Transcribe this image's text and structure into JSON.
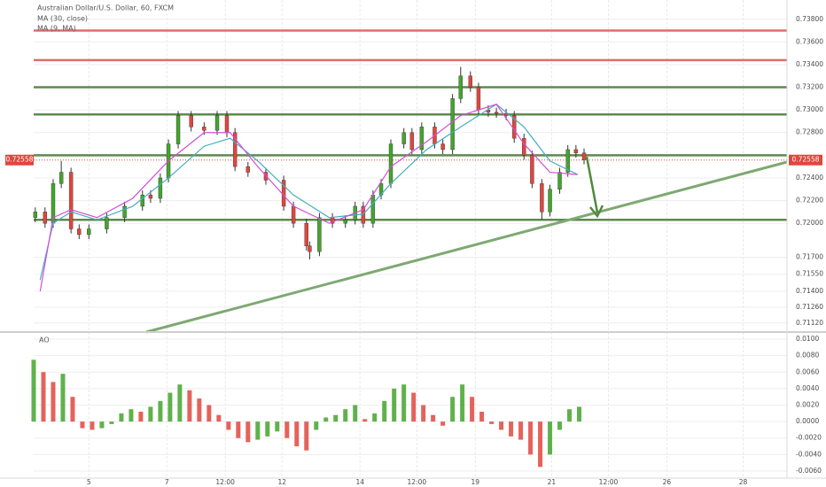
{
  "chart_data": [
    {
      "type": "candlestick",
      "title": "Australian Dollar/U.S. Dollar, 60, FXCM",
      "xlim": [
        0,
        464
      ],
      "xticks": [
        {
          "value": 34,
          "label": "5"
        },
        {
          "value": 82,
          "label": "7"
        },
        {
          "value": 118,
          "label": "12:00"
        },
        {
          "value": 153,
          "label": "12"
        },
        {
          "value": 201,
          "label": "14"
        },
        {
          "value": 236,
          "label": "12:00"
        },
        {
          "value": 272,
          "label": "19"
        },
        {
          "value": 319,
          "label": "21"
        },
        {
          "value": 354,
          "label": "12:00"
        },
        {
          "value": 390,
          "label": "26"
        },
        {
          "value": 437,
          "label": "28"
        }
      ],
      "ylim": [
        0.7104,
        0.7397
      ],
      "yticks": [
        {
          "value": 0.738,
          "label": "0.73800"
        },
        {
          "value": 0.736,
          "label": "0.73600"
        },
        {
          "value": 0.734,
          "label": "0.73400"
        },
        {
          "value": 0.732,
          "label": "0.73200"
        },
        {
          "value": 0.73,
          "label": "0.73000"
        },
        {
          "value": 0.728,
          "label": "0.72800"
        },
        {
          "value": 0.724,
          "label": "0.72400"
        },
        {
          "value": 0.722,
          "label": "0.72200"
        },
        {
          "value": 0.72,
          "label": "0.72000"
        },
        {
          "value": 0.717,
          "label": "0.71700"
        },
        {
          "value": 0.7155,
          "label": "0.71550"
        },
        {
          "value": 0.714,
          "label": "0.71400"
        },
        {
          "value": 0.7126,
          "label": "0.71260"
        },
        {
          "value": 0.7112,
          "label": "0.71120"
        }
      ],
      "grid": true,
      "up_color": "#43a52c",
      "down_color": "#e0463e",
      "x": [
        1,
        7,
        12,
        17,
        23,
        28,
        34,
        45,
        56,
        67,
        72,
        78,
        83,
        89,
        97,
        105,
        113,
        119,
        124,
        132,
        143,
        154,
        160,
        168,
        170,
        176,
        184,
        192,
        198,
        203,
        209,
        214,
        220,
        228,
        233,
        239,
        247,
        252,
        258,
        263,
        269,
        274,
        280,
        285,
        291,
        296,
        302,
        307,
        313,
        318,
        324,
        329,
        334,
        339
      ],
      "open": [
        0.7205,
        0.721,
        0.72,
        0.7235,
        0.7245,
        0.7195,
        0.719,
        0.7195,
        0.7205,
        0.7215,
        0.7225,
        0.7222,
        0.724,
        0.727,
        0.7295,
        0.7285,
        0.7282,
        0.7295,
        0.728,
        0.725,
        0.7245,
        0.7238,
        0.7215,
        0.72,
        0.718,
        0.7175,
        0.7205,
        0.72,
        0.7203,
        0.7215,
        0.72,
        0.7225,
        0.7235,
        0.727,
        0.728,
        0.7265,
        0.7285,
        0.727,
        0.7265,
        0.731,
        0.733,
        0.732,
        0.73,
        0.7298,
        0.7297,
        0.7295,
        0.7275,
        0.726,
        0.7235,
        0.721,
        0.723,
        0.7245,
        0.7265,
        0.7262
      ],
      "high": [
        0.7214,
        0.7214,
        0.7239,
        0.7255,
        0.7249,
        0.7199,
        0.7199,
        0.7209,
        0.7219,
        0.7229,
        0.7229,
        0.7244,
        0.7274,
        0.7299,
        0.7299,
        0.7289,
        0.7299,
        0.7299,
        0.7284,
        0.7254,
        0.7249,
        0.7242,
        0.7219,
        0.7204,
        0.7184,
        0.7209,
        0.7209,
        0.7207,
        0.7219,
        0.7219,
        0.7229,
        0.7239,
        0.7274,
        0.7284,
        0.7284,
        0.7289,
        0.7289,
        0.7274,
        0.7314,
        0.7338,
        0.7334,
        0.7324,
        0.7304,
        0.7302,
        0.7301,
        0.7299,
        0.7279,
        0.7264,
        0.7239,
        0.7234,
        0.7249,
        0.7269,
        0.7269,
        0.7266
      ],
      "low": [
        0.7201,
        0.7196,
        0.7196,
        0.7231,
        0.7191,
        0.7186,
        0.7186,
        0.7191,
        0.7201,
        0.7211,
        0.7218,
        0.7218,
        0.7236,
        0.7266,
        0.7281,
        0.7278,
        0.7278,
        0.7276,
        0.7246,
        0.7241,
        0.7234,
        0.7211,
        0.7196,
        0.7176,
        0.7168,
        0.7171,
        0.7196,
        0.7196,
        0.7199,
        0.7196,
        0.7196,
        0.7221,
        0.7231,
        0.7266,
        0.7261,
        0.7261,
        0.7266,
        0.7261,
        0.7261,
        0.7306,
        0.7316,
        0.7296,
        0.7294,
        0.7293,
        0.7291,
        0.7271,
        0.7256,
        0.7231,
        0.7203,
        0.7206,
        0.7226,
        0.7241,
        0.7258,
        0.7252
      ],
      "close": [
        0.721,
        0.72,
        0.7235,
        0.7245,
        0.7195,
        0.719,
        0.7195,
        0.7205,
        0.7215,
        0.7225,
        0.7222,
        0.724,
        0.727,
        0.7295,
        0.7285,
        0.7282,
        0.7295,
        0.728,
        0.725,
        0.7245,
        0.7238,
        0.7215,
        0.72,
        0.718,
        0.7175,
        0.7205,
        0.72,
        0.7203,
        0.7215,
        0.72,
        0.7225,
        0.7235,
        0.727,
        0.728,
        0.7265,
        0.7285,
        0.727,
        0.7265,
        0.731,
        0.733,
        0.732,
        0.73,
        0.7298,
        0.7297,
        0.7295,
        0.7275,
        0.726,
        0.7235,
        0.721,
        0.723,
        0.7245,
        0.7265,
        0.7262,
        0.72558
      ],
      "last_price": {
        "value": 0.72558,
        "label": "0.72558"
      },
      "series": [
        {
          "name": "MA (30, close)",
          "color": "#45aebf",
          "x": [
            4,
            12,
            23,
            39,
            61,
            83,
            105,
            121,
            138,
            160,
            182,
            203,
            220,
            242,
            263,
            285,
            302,
            318,
            335
          ],
          "values": [
            0.715,
            0.72,
            0.721,
            0.7203,
            0.7215,
            0.724,
            0.7268,
            0.7275,
            0.7255,
            0.7225,
            0.7205,
            0.7208,
            0.7235,
            0.7265,
            0.7285,
            0.7305,
            0.7285,
            0.7255,
            0.7243
          ]
        },
        {
          "name": "MA (9, MA)",
          "color": "#d24fd6",
          "x": [
            4,
            12,
            23,
            39,
            61,
            83,
            105,
            121,
            138,
            160,
            182,
            203,
            220,
            242,
            263,
            285,
            302,
            318,
            335
          ],
          "values": [
            0.714,
            0.7205,
            0.7212,
            0.7205,
            0.7222,
            0.7255,
            0.728,
            0.728,
            0.725,
            0.7215,
            0.72,
            0.7212,
            0.725,
            0.7272,
            0.7295,
            0.7305,
            0.727,
            0.7245,
            0.7243
          ]
        }
      ],
      "levels": [
        {
          "value": 0.737,
          "color": "#e36b6b"
        },
        {
          "value": 0.7344,
          "color": "#e36b6b"
        },
        {
          "value": 0.732,
          "color": "#5e8a4e"
        },
        {
          "value": 0.7296,
          "color": "#5e8a4e"
        },
        {
          "value": 0.726,
          "color": "#5e8a4e"
        },
        {
          "value": 0.7203,
          "color": "#5e8a4e"
        }
      ]
    },
    {
      "type": "bar",
      "title": "AO",
      "xlim": [
        0,
        464
      ],
      "ylim": [
        -0.00686,
        0.01086
      ],
      "yticks": [
        {
          "value": 0.01,
          "label": "0.0100"
        },
        {
          "value": 0.008,
          "label": "0.0080"
        },
        {
          "value": 0.006,
          "label": "0.0060"
        },
        {
          "value": 0.004,
          "label": "0.0040"
        },
        {
          "value": 0.002,
          "label": "0.0020"
        },
        {
          "value": 0,
          "label": "0.0000"
        },
        {
          "value": -0.002,
          "label": "-0.0020"
        },
        {
          "value": -0.004,
          "label": "-0.0040"
        },
        {
          "value": -0.006,
          "label": "-0.0060"
        }
      ],
      "up_color": "#43a52c",
      "down_color": "#e0463e",
      "x": [
        0,
        6,
        12,
        18,
        24,
        30,
        36,
        42,
        48,
        54,
        60,
        66,
        72,
        78,
        84,
        90,
        96,
        102,
        108,
        114,
        120,
        126,
        132,
        138,
        144,
        150,
        156,
        162,
        168,
        174,
        180,
        186,
        192,
        198,
        204,
        210,
        216,
        222,
        228,
        234,
        240,
        246,
        252,
        258,
        264,
        270,
        276,
        282,
        288,
        294,
        300,
        306,
        312,
        318,
        324,
        330,
        336
      ],
      "values": [
        0.0075,
        0.006,
        0.0048,
        0.0058,
        0.003,
        -0.0008,
        -0.001,
        -0.0008,
        -0.0003,
        0.001,
        0.0015,
        0.0012,
        0.0018,
        0.0025,
        0.0035,
        0.0045,
        0.0038,
        0.0028,
        0.002,
        0.0008,
        -0.001,
        -0.002,
        -0.0025,
        -0.0022,
        -0.0018,
        -0.0012,
        -0.002,
        -0.003,
        -0.0035,
        -0.001,
        0.0005,
        0.0008,
        0.0015,
        0.002,
        0.0003,
        0.001,
        0.0025,
        0.004,
        0.0045,
        0.0035,
        0.002,
        0.0008,
        -0.0005,
        0.003,
        0.0045,
        0.003,
        0.0012,
        -0.0003,
        -0.001,
        -0.0018,
        -0.0022,
        -0.004,
        -0.0055,
        -0.004,
        -0.001,
        0.0015,
        0.0018
      ]
    }
  ]
}
